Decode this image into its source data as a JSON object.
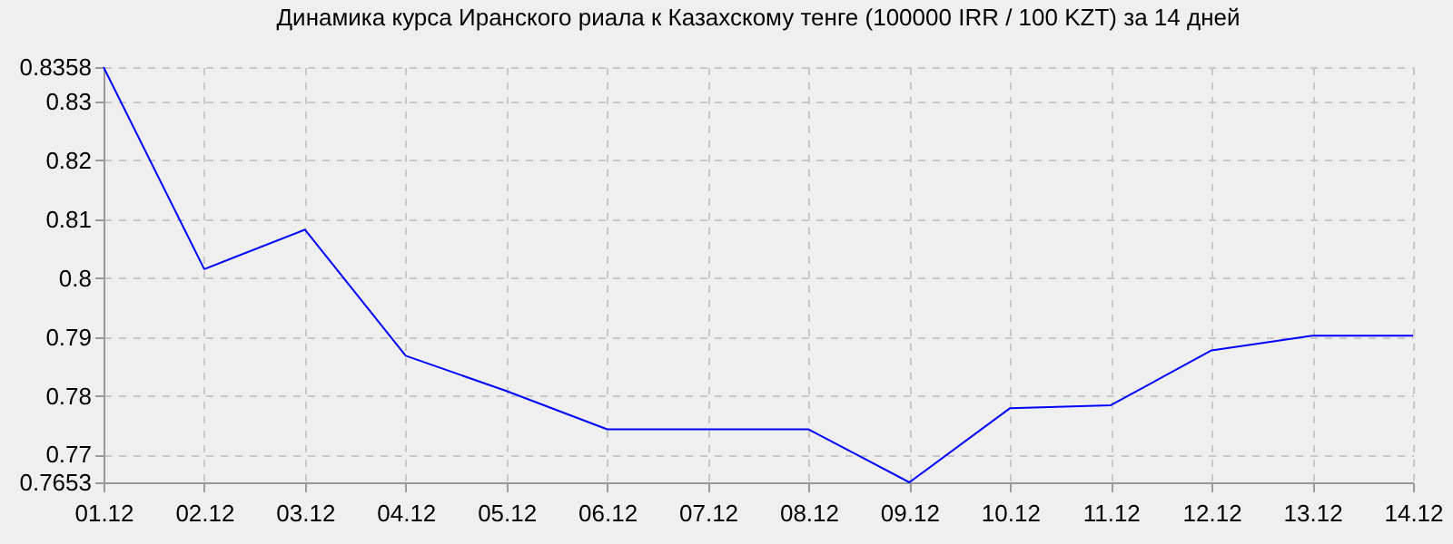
{
  "chart_data": {
    "type": "line",
    "title": "Динамика курса Иранского риала к Казахскому тенге (100000 IRR / 100 KZT) за 14 дней",
    "categories": [
      "01.12",
      "02.12",
      "03.12",
      "04.12",
      "05.12",
      "06.12",
      "07.12",
      "08.12",
      "09.12",
      "10.12",
      "11.12",
      "12.12",
      "13.12",
      "14.12"
    ],
    "series": [
      {
        "color": "#0000ff",
        "values": [
          0.8358,
          0.8015,
          0.8082,
          0.7868,
          0.7808,
          0.7743,
          0.7743,
          0.7743,
          0.7653,
          0.7779,
          0.7784,
          0.7877,
          0.7902,
          0.7902
        ]
      }
    ],
    "ylim": [
      0.7653,
      0.8358
    ],
    "yticks": [
      0.7653,
      0.77,
      0.78,
      0.79,
      0.8,
      0.81,
      0.82,
      0.83,
      0.8358
    ],
    "grid": true,
    "legend": false,
    "marker": "none",
    "line_style": "solid"
  }
}
